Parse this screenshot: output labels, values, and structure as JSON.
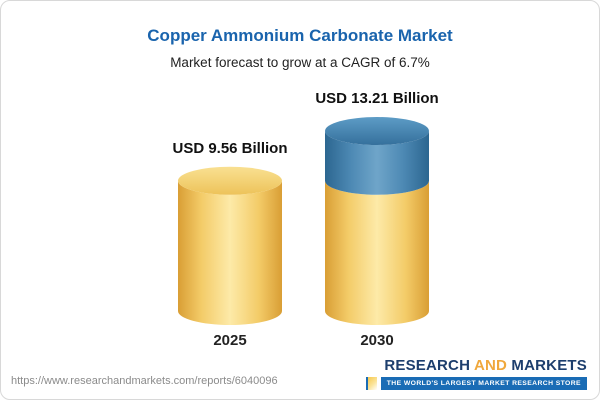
{
  "chart_data": {
    "type": "bar",
    "variant": "3d-cylinder",
    "title": "Copper Ammonium Carbonate Market",
    "subtitle": "Market forecast to grow at a CAGR of 6.7%",
    "cagr_percent": 6.7,
    "unit": "USD Billion",
    "categories": [
      "2025",
      "2030"
    ],
    "values": [
      9.56,
      13.21
    ],
    "value_labels": [
      "USD 9.56 Billion",
      "USD 13.21 Billion"
    ],
    "stacking_note": "2030 cylinder = gold base segment at 2025 level plus blue growth segment on top",
    "axes": "none",
    "legend": "none",
    "gridlines": false,
    "colors": {
      "gold_segment": "#f2c95c",
      "blue_segment": "#447fab",
      "title_text": "#1a64ad"
    }
  },
  "footer": {
    "url": "https://www.researchandmarkets.com/reports/6040096",
    "brand": {
      "research": "RESEARCH",
      "and": "AND",
      "markets": "MARKETS",
      "tagline": "THE WORLD'S LARGEST MARKET RESEARCH STORE",
      "colors": {
        "navy": "#1d3e6d",
        "orange": "#f0a83c",
        "banner_blue": "#1a6cb5"
      }
    }
  }
}
